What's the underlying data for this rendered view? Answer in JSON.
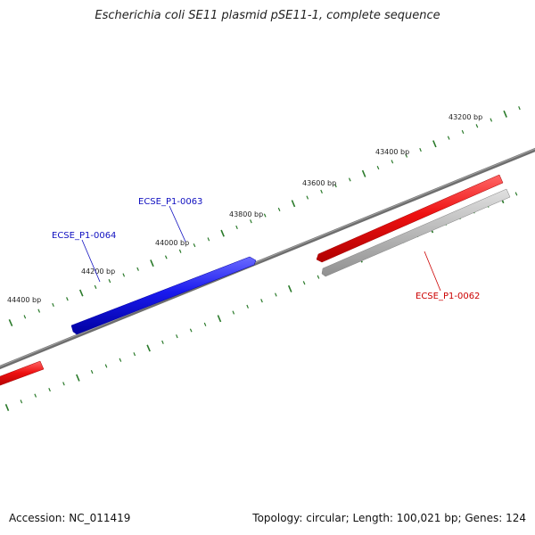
{
  "title": "Escherichia coli SE11 plasmid pSE11-1, complete sequence",
  "footer": {
    "accession": "Accession: NC_011419",
    "summary": "Topology: circular; Length: 100,021 bp; Genes: 124"
  },
  "colors": {
    "backbone": "#777777",
    "ticks": "#2a7a2a",
    "forward_gene": "#ee1111",
    "reverse_gene": "#1a1aee",
    "cds_shadow": "#b8b8b8",
    "label_blue": "#1010c0",
    "label_red": "#cc0000"
  },
  "ticks": [
    {
      "label": "43200 bp"
    },
    {
      "label": "43400 bp"
    },
    {
      "label": "43600 bp"
    },
    {
      "label": "43800 bp"
    },
    {
      "label": "44000 bp"
    },
    {
      "label": "44200 bp"
    },
    {
      "label": "44400 bp"
    }
  ],
  "genes": [
    {
      "label": "ECSE_P1-0063",
      "strand": "reverse"
    },
    {
      "label": "ECSE_P1-0064",
      "strand": "reverse"
    },
    {
      "label": "ECSE_P1-0062",
      "strand": "forward"
    }
  ]
}
